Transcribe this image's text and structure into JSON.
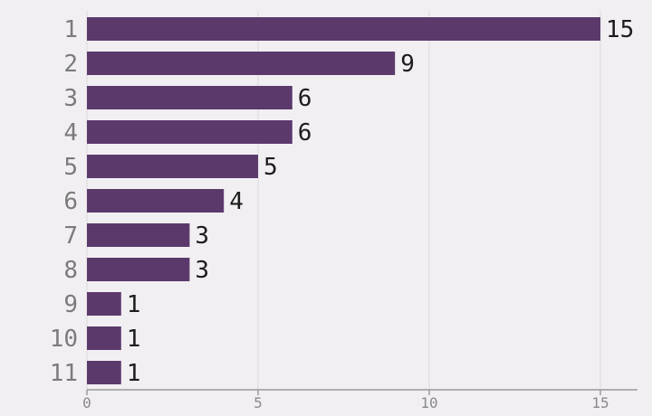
{
  "chart_data": {
    "type": "bar",
    "orientation": "horizontal",
    "categories": [
      "1",
      "2",
      "3",
      "4",
      "5",
      "6",
      "7",
      "8",
      "9",
      "10",
      "11"
    ],
    "values": [
      15,
      9,
      6,
      6,
      5,
      4,
      3,
      3,
      1,
      1,
      1
    ],
    "x_ticks": [
      0,
      5,
      10,
      15
    ],
    "xlim": [
      0,
      16
    ],
    "grid": true,
    "title": "",
    "xlabel": "",
    "ylabel": "",
    "colors": {
      "bar": "#5b3a6b",
      "background": "#f2eff3"
    }
  }
}
